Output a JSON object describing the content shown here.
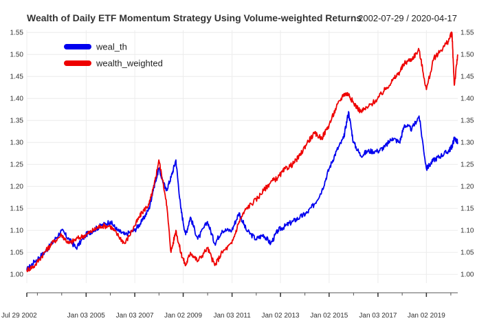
{
  "chart_data": {
    "type": "line",
    "title": "Wealth of Daily ETF Momentum Strategy Using Volume-weighted Returns",
    "date_range": "2002-07-29 / 2020-04-17",
    "xlabel": "",
    "ylabel": "",
    "ylim": [
      0.98,
      1.555
    ],
    "y_ticks": [
      "1.00",
      "1.05",
      "1.10",
      "1.15",
      "1.20",
      "1.25",
      "1.30",
      "1.35",
      "1.40",
      "1.45",
      "1.50",
      "1.55"
    ],
    "x_tick_labels": [
      "Jul 29 2002",
      "Jan 03 2005",
      "Jan 03 2007",
      "Jan 02 2009",
      "Jan 03 2011",
      "Jan 02 2013",
      "Jan 02 2015",
      "Jan 03 2017",
      "Jan 02 2019"
    ],
    "x_tick_years": [
      2002.57,
      2005.01,
      2007.01,
      2009.0,
      2011.01,
      2013.0,
      2015.0,
      2017.01,
      2019.0
    ],
    "xlim": [
      2002.57,
      2020.29
    ],
    "grid": true,
    "legend_position": "top-left",
    "series": [
      {
        "name": "weal_th",
        "color": "#0000ee",
        "x": [
          2002.57,
          2002.9,
          2003.3,
          2003.6,
          2004.0,
          2004.3,
          2004.6,
          2005.0,
          2005.3,
          2005.6,
          2006.0,
          2006.3,
          2006.6,
          2007.0,
          2007.3,
          2007.6,
          2007.8,
          2008.0,
          2008.3,
          2008.5,
          2008.7,
          2008.9,
          2009.1,
          2009.3,
          2009.6,
          2010.0,
          2010.3,
          2010.6,
          2011.0,
          2011.3,
          2011.6,
          2012.0,
          2012.3,
          2012.6,
          2012.9,
          2013.2,
          2013.5,
          2013.8,
          2014.1,
          2014.4,
          2014.7,
          2015.0,
          2015.3,
          2015.6,
          2015.8,
          2016.0,
          2016.3,
          2016.6,
          2017.0,
          2017.3,
          2017.6,
          2017.9,
          2018.1,
          2018.4,
          2018.7,
          2019.0,
          2019.3,
          2019.6,
          2019.9,
          2020.05,
          2020.15,
          2020.29
        ],
        "y": [
          1.01,
          1.03,
          1.05,
          1.07,
          1.1,
          1.08,
          1.06,
          1.09,
          1.1,
          1.11,
          1.12,
          1.1,
          1.09,
          1.1,
          1.12,
          1.15,
          1.2,
          1.24,
          1.19,
          1.22,
          1.26,
          1.15,
          1.09,
          1.13,
          1.08,
          1.12,
          1.07,
          1.1,
          1.1,
          1.14,
          1.1,
          1.08,
          1.09,
          1.07,
          1.1,
          1.11,
          1.12,
          1.13,
          1.14,
          1.16,
          1.19,
          1.24,
          1.28,
          1.31,
          1.37,
          1.3,
          1.27,
          1.28,
          1.28,
          1.29,
          1.31,
          1.3,
          1.34,
          1.33,
          1.36,
          1.24,
          1.26,
          1.27,
          1.28,
          1.29,
          1.31,
          1.3
        ]
      },
      {
        "name": "wealth_weighted",
        "color": "#ee0000",
        "x": [
          2002.57,
          2002.9,
          2003.3,
          2003.6,
          2004.0,
          2004.3,
          2004.6,
          2005.0,
          2005.3,
          2005.6,
          2006.0,
          2006.3,
          2006.6,
          2007.0,
          2007.3,
          2007.6,
          2007.8,
          2008.0,
          2008.3,
          2008.5,
          2008.7,
          2008.9,
          2009.1,
          2009.3,
          2009.6,
          2010.0,
          2010.3,
          2010.6,
          2011.0,
          2011.3,
          2011.6,
          2012.0,
          2012.3,
          2012.6,
          2012.9,
          2013.2,
          2013.5,
          2013.8,
          2014.1,
          2014.4,
          2014.7,
          2015.0,
          2015.3,
          2015.6,
          2015.8,
          2016.0,
          2016.3,
          2016.6,
          2017.0,
          2017.3,
          2017.6,
          2017.9,
          2018.1,
          2018.4,
          2018.7,
          2019.0,
          2019.3,
          2019.6,
          2019.9,
          2020.05,
          2020.15,
          2020.29
        ],
        "y": [
          1.01,
          1.02,
          1.05,
          1.07,
          1.09,
          1.07,
          1.08,
          1.09,
          1.1,
          1.11,
          1.11,
          1.09,
          1.07,
          1.11,
          1.14,
          1.16,
          1.2,
          1.26,
          1.17,
          1.05,
          1.1,
          1.05,
          1.02,
          1.05,
          1.03,
          1.06,
          1.02,
          1.05,
          1.07,
          1.12,
          1.15,
          1.17,
          1.19,
          1.21,
          1.22,
          1.24,
          1.25,
          1.27,
          1.3,
          1.32,
          1.31,
          1.34,
          1.38,
          1.41,
          1.41,
          1.39,
          1.37,
          1.38,
          1.4,
          1.42,
          1.44,
          1.46,
          1.48,
          1.49,
          1.51,
          1.42,
          1.49,
          1.51,
          1.53,
          1.55,
          1.43,
          1.5
        ]
      }
    ]
  }
}
